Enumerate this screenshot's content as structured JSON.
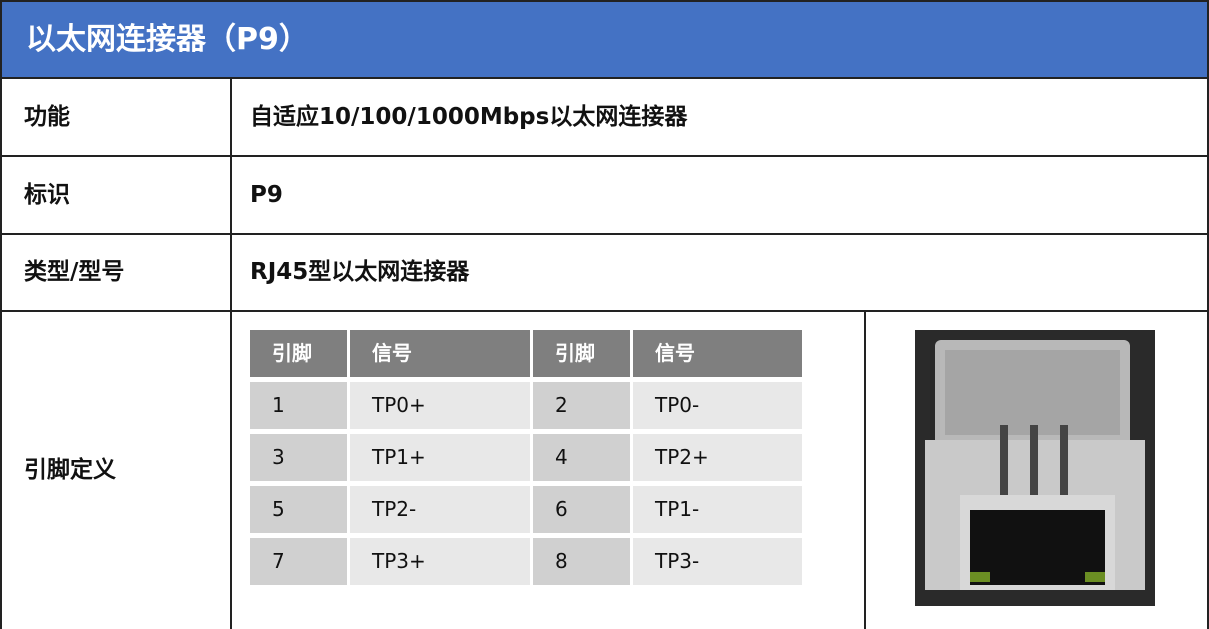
{
  "header": {
    "title": "以太网连接器（P9）"
  },
  "rows": [
    {
      "label": "功能",
      "value": "自适应10/100/1000Mbps以太网连接器"
    },
    {
      "label": "标识",
      "value": "P9"
    },
    {
      "label": "类型/型号",
      "value": "RJ45型以太网连接器"
    }
  ],
  "pin_section": {
    "label": "引脚定义",
    "table": {
      "headers": [
        "引脚",
        "信号",
        "引脚",
        "信号"
      ],
      "rows": [
        [
          "1",
          "TP0+",
          "2",
          "TP0-"
        ],
        [
          "3",
          "TP1+",
          "4",
          "TP2+"
        ],
        [
          "5",
          "TP2-",
          "6",
          "TP1-"
        ],
        [
          "7",
          "TP3+",
          "8",
          "TP3-"
        ]
      ]
    }
  }
}
